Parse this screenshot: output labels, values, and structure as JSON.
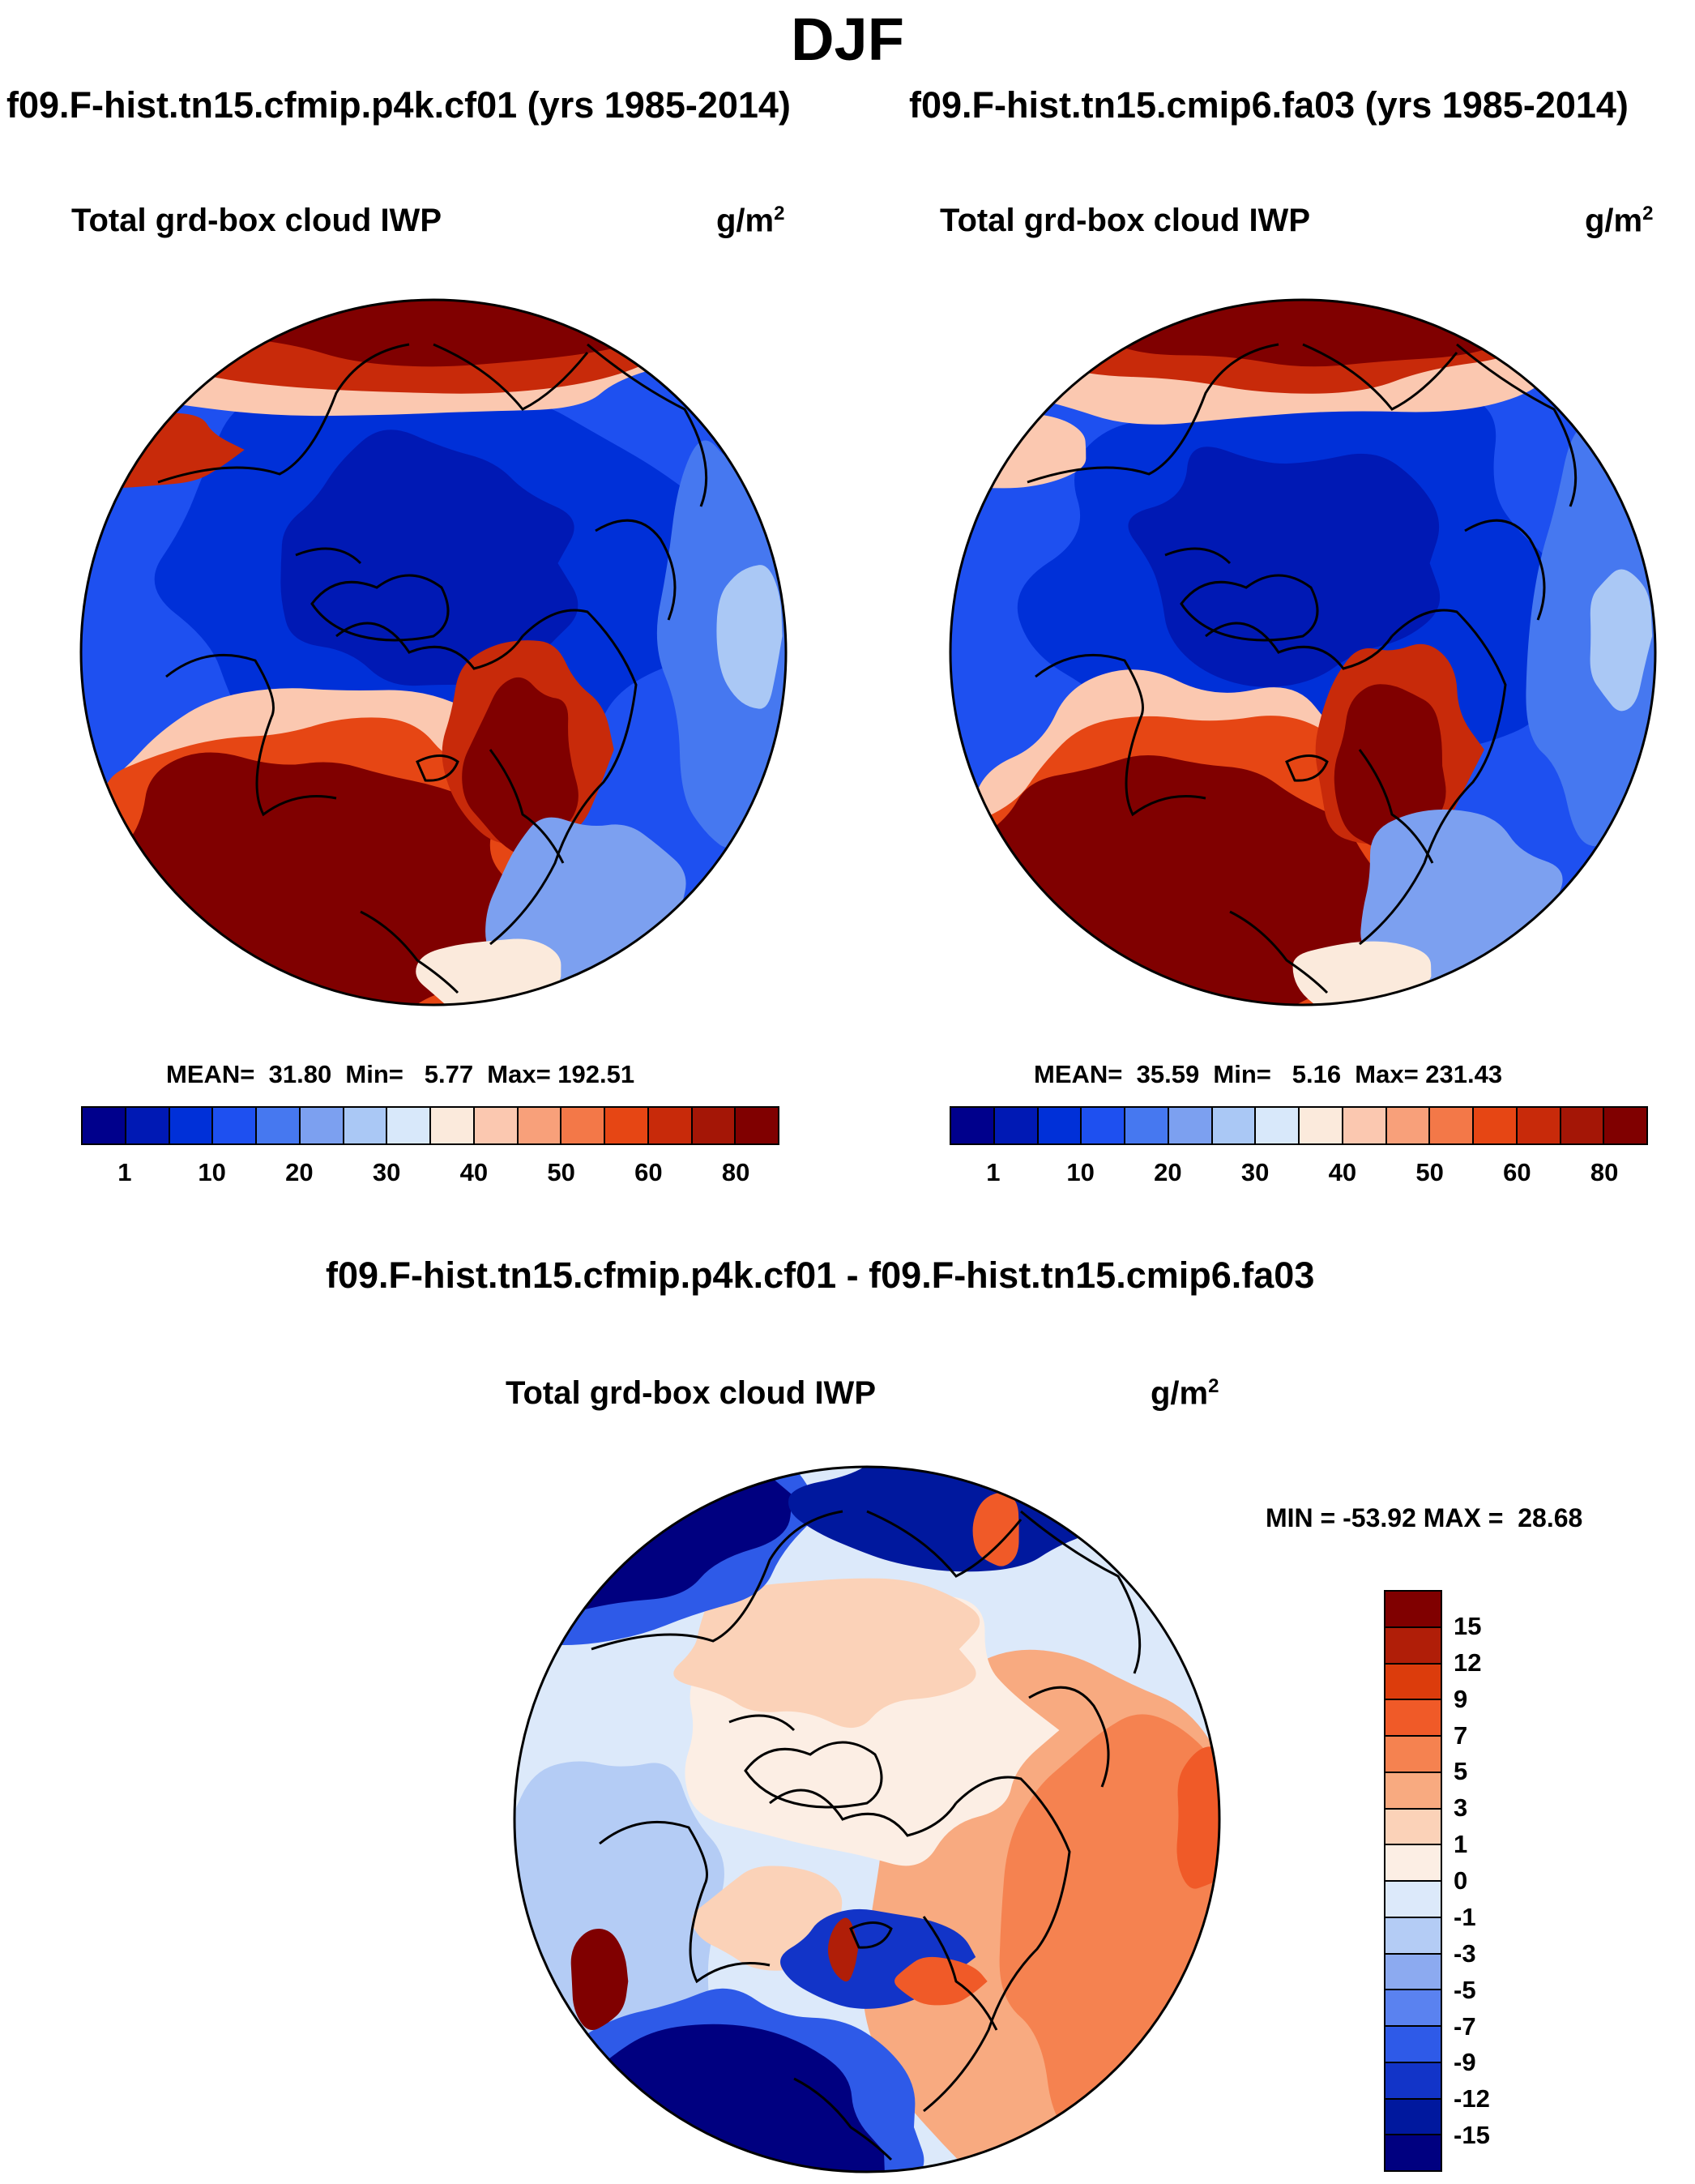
{
  "figure": {
    "season": "DJF"
  },
  "panels": [
    {
      "case_title": "f09.F-hist.tn15.cfmip.p4k.cf01 (yrs 1985-2014)",
      "variable": "Total grd-box cloud IWP",
      "units_base": "g/m",
      "units_exp": "2",
      "stats": "MEAN=  31.80  Min=   5.77  Max= 192.51"
    },
    {
      "case_title": "f09.F-hist.tn15.cmip6.fa03 (yrs 1985-2014)",
      "variable": "Total grd-box cloud IWP",
      "units_base": "g/m",
      "units_exp": "2",
      "stats": "MEAN=  35.59  Min=   5.16  Max= 231.43"
    }
  ],
  "difference": {
    "title": "f09.F-hist.tn15.cfmip.p4k.cf01 - f09.F-hist.tn15.cmip6.fa03",
    "variable": "Total grd-box cloud IWP",
    "units_base": "g/m",
    "units_exp": "2",
    "minmax": "MIN = -53.92 MAX =  28.68"
  },
  "chart_data": [
    {
      "type": "heatmap",
      "title": "f09.F-hist.tn15.cfmip.p4k.cf01 (yrs 1985-2014)",
      "projection": "north polar stereographic",
      "colorbar": {
        "orientation": "horizontal",
        "tick_labels": [
          "1",
          "10",
          "20",
          "30",
          "40",
          "50",
          "60",
          "80"
        ],
        "colors": [
          "#00008c",
          "#0019b4",
          "#0030d8",
          "#1e50f0",
          "#4678f0",
          "#7ca0f0",
          "#aac8f5",
          "#d8e8fa",
          "#fbeadc",
          "#fbc8b0",
          "#f8a07a",
          "#f37848",
          "#e64614",
          "#c82a0a",
          "#a41606",
          "#800000"
        ]
      },
      "stats": {
        "mean": 31.8,
        "min": 5.77,
        "max": 192.51
      }
    },
    {
      "type": "heatmap",
      "title": "f09.F-hist.tn15.cmip6.fa03 (yrs 1985-2014)",
      "projection": "north polar stereographic",
      "colorbar": {
        "orientation": "horizontal",
        "tick_labels": [
          "1",
          "10",
          "20",
          "30",
          "40",
          "50",
          "60",
          "80"
        ],
        "colors": [
          "#00008c",
          "#0019b4",
          "#0030d8",
          "#1e50f0",
          "#4678f0",
          "#7ca0f0",
          "#aac8f5",
          "#d8e8fa",
          "#fbeadc",
          "#fbc8b0",
          "#f8a07a",
          "#f37848",
          "#e64614",
          "#c82a0a",
          "#a41606",
          "#800000"
        ]
      },
      "stats": {
        "mean": 35.59,
        "min": 5.16,
        "max": 231.43
      }
    },
    {
      "type": "heatmap",
      "title": "f09.F-hist.tn15.cfmip.p4k.cf01 - f09.F-hist.tn15.cmip6.fa03",
      "projection": "north polar stereographic",
      "colorbar": {
        "orientation": "vertical",
        "tick_labels": [
          "15",
          "12",
          "9",
          "7",
          "5",
          "3",
          "1",
          "0",
          "-1",
          "-3",
          "-5",
          "-7",
          "-9",
          "-12",
          "-15"
        ],
        "colors": [
          "#800000",
          "#b01e08",
          "#dc3c0c",
          "#f05a28",
          "#f58250",
          "#f8aa80",
          "#fbd2b8",
          "#fceee4",
          "#dce9fa",
          "#b4ccf5",
          "#8caaf0",
          "#5a82f0",
          "#2e5ae8",
          "#1234c8",
          "#00189e",
          "#000080"
        ]
      },
      "stats": {
        "min": -53.92,
        "max": 28.68
      }
    }
  ]
}
